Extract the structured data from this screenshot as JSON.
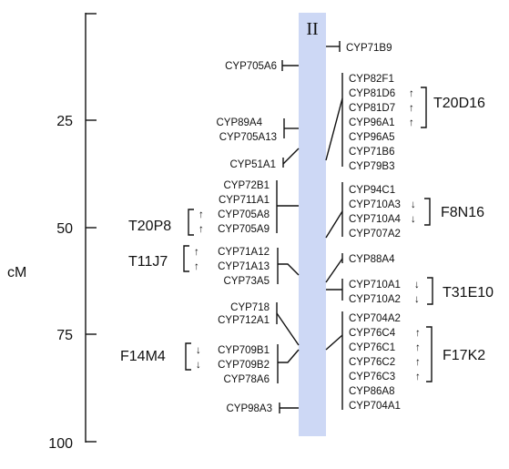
{
  "chromosome": {
    "label": "II",
    "color": "#cdd8f5"
  },
  "axis": {
    "unit": "cM",
    "ticks": [
      "25",
      "50",
      "75",
      "100"
    ],
    "range": [
      0,
      100
    ]
  },
  "left_genes": {
    "cyp705a6": "CYP705A6",
    "cyp89a4": "CYP89A4",
    "cyp705a13": "CYP705A13",
    "cyp51a1": "CYP51A1",
    "cyp72b1": "CYP72B1",
    "cyp711a1": "CYP711A1",
    "cyp705a8": "CYP705A8",
    "cyp705a9": "CYP705A9",
    "cyp71a12": "CYP71A12",
    "cyp71a13": "CYP71A13",
    "cyp73a5": "CYP73A5",
    "cyp718": "CYP718",
    "cyp712a1": "CYP712A1",
    "cyp709b1": "CYP709B1",
    "cyp709b2": "CYP709B2",
    "cyp78a6": "CYP78A6",
    "cyp98a3": "CYP98A3"
  },
  "right_genes": {
    "cyp71b9": "CYP71B9",
    "cyp82f1": "CYP82F1",
    "cyp81d6": "CYP81D6",
    "cyp81d7": "CYP81D7",
    "cyp96a1": "CYP96A1",
    "cyp96a5": "CYP96A5",
    "cyp71b6": "CYP71B6",
    "cyp79b3": "CYP79B3",
    "cyp94c1": "CYP94C1",
    "cyp710a3": "CYP710A3",
    "cyp710a4": "CYP710A4",
    "cyp707a2": "CYP707A2",
    "cyp88a4": "CYP88A4",
    "cyp710a1": "CYP710A1",
    "cyp710a2": "CYP710A2",
    "cyp704a2": "CYP704A2",
    "cyp76c4": "CYP76C4",
    "cyp76c1": "CYP76C1",
    "cyp76c2": "CYP76C2",
    "cyp76c3": "CYP76C3",
    "cyp86a8": "CYP86A8",
    "cyp704a1": "CYP704A1"
  },
  "clusters": {
    "t20p8": "T20P8",
    "t11j7": "T11J7",
    "f14m4": "F14M4",
    "t20d16": "T20D16",
    "f8n16": "F8N16",
    "t31e10": "T31E10",
    "f17k2": "F17K2"
  },
  "arrows": {
    "up": "↑",
    "down": "↓"
  }
}
